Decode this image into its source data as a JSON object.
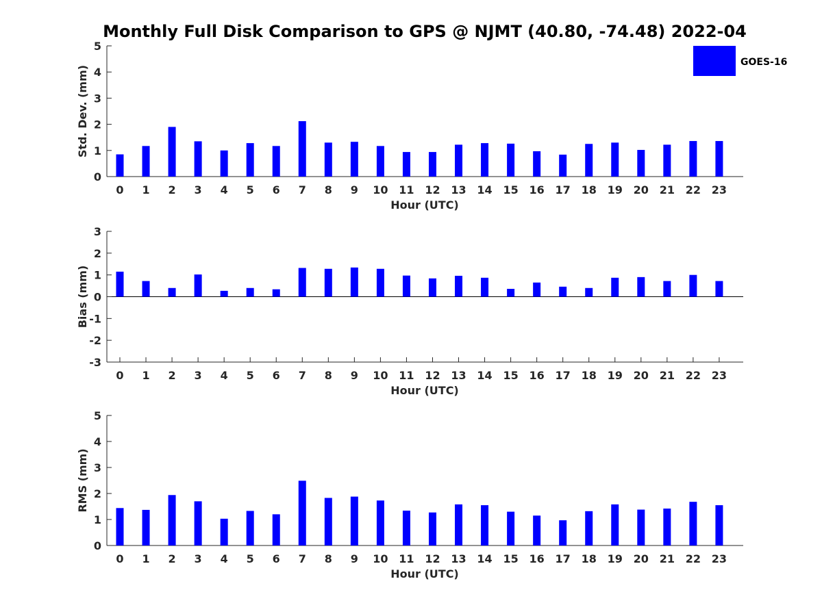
{
  "title": "Monthly Full Disk Comparison to GPS @ NJMT (40.80, -74.48) 2022-04",
  "legend": {
    "label": "GOES-16",
    "color": "#0000ff",
    "position": "top-right"
  },
  "chart_data": [
    {
      "type": "bar",
      "ylabel": "Std. Dev. (mm)",
      "xlabel": "Hour (UTC)",
      "ylim": [
        0,
        5
      ],
      "yticks": [
        "0",
        "1",
        "2",
        "3",
        "4",
        "5"
      ],
      "categories": [
        "0",
        "1",
        "2",
        "3",
        "4",
        "5",
        "6",
        "7",
        "8",
        "9",
        "10",
        "11",
        "12",
        "13",
        "14",
        "15",
        "16",
        "17",
        "18",
        "19",
        "20",
        "21",
        "22",
        "23"
      ],
      "series": [
        {
          "name": "GOES-16",
          "color": "#0000ff",
          "values": [
            0.85,
            1.17,
            1.9,
            1.35,
            1.0,
            1.28,
            1.17,
            2.12,
            1.3,
            1.33,
            1.17,
            0.94,
            0.94,
            1.22,
            1.28,
            1.26,
            0.97,
            0.84,
            1.25,
            1.3,
            1.02,
            1.22,
            1.36,
            1.36
          ]
        }
      ]
    },
    {
      "type": "bar",
      "ylabel": "Bias (mm)",
      "xlabel": "Hour (UTC)",
      "ylim": [
        -3,
        3
      ],
      "yticks": [
        "-3",
        "-2",
        "-1",
        "0",
        "1",
        "2",
        "3"
      ],
      "categories": [
        "0",
        "1",
        "2",
        "3",
        "4",
        "5",
        "6",
        "7",
        "8",
        "9",
        "10",
        "11",
        "12",
        "13",
        "14",
        "15",
        "16",
        "17",
        "18",
        "19",
        "20",
        "21",
        "22",
        "23"
      ],
      "series": [
        {
          "name": "GOES-16",
          "color": "#0000ff",
          "values": [
            1.15,
            0.72,
            0.4,
            1.02,
            0.27,
            0.4,
            0.34,
            1.32,
            1.28,
            1.34,
            1.28,
            0.97,
            0.84,
            0.96,
            0.87,
            0.36,
            0.65,
            0.46,
            0.4,
            0.87,
            0.9,
            0.72,
            1.0,
            0.72
          ]
        }
      ]
    },
    {
      "type": "bar",
      "ylabel": "RMS (mm)",
      "xlabel": "Hour (UTC)",
      "ylim": [
        0,
        5
      ],
      "yticks": [
        "0",
        "1",
        "2",
        "3",
        "4",
        "5"
      ],
      "categories": [
        "0",
        "1",
        "2",
        "3",
        "4",
        "5",
        "6",
        "7",
        "8",
        "9",
        "10",
        "11",
        "12",
        "13",
        "14",
        "15",
        "16",
        "17",
        "18",
        "19",
        "20",
        "21",
        "22",
        "23"
      ],
      "series": [
        {
          "name": "GOES-16",
          "color": "#0000ff",
          "values": [
            1.44,
            1.37,
            1.94,
            1.7,
            1.03,
            1.33,
            1.2,
            2.49,
            1.83,
            1.88,
            1.73,
            1.34,
            1.27,
            1.58,
            1.55,
            1.3,
            1.15,
            0.97,
            1.32,
            1.58,
            1.38,
            1.42,
            1.68,
            1.55
          ]
        }
      ]
    }
  ]
}
